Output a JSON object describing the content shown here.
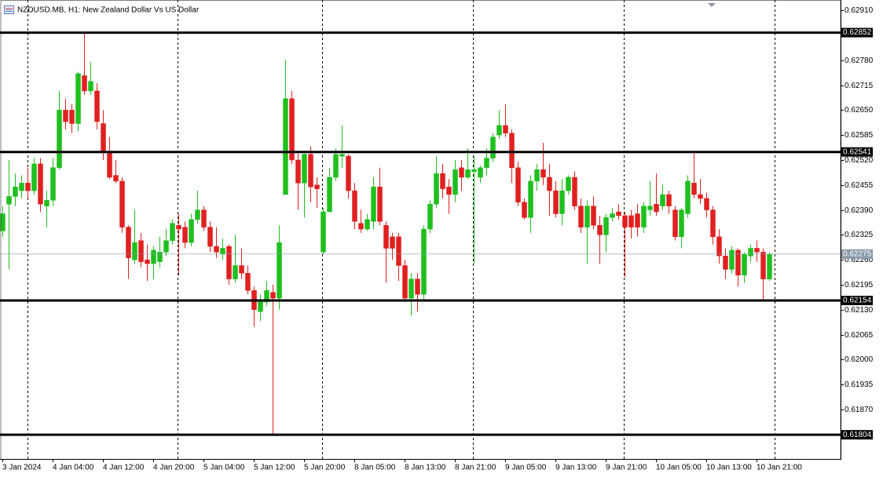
{
  "chart_data": {
    "type": "candlestick",
    "title": "NZDUSD.MB, H1:  New Zealand Dollar Vs US Dollar",
    "up_color": "#1fbf1f",
    "down_color": "#e02020",
    "level_color": "#000000",
    "current_color": "#8a9aa8",
    "categories": [
      "3 Jan 2024",
      null,
      null,
      null,
      null,
      null,
      null,
      null,
      "4 Jan 04:00",
      null,
      null,
      null,
      null,
      null,
      null,
      null,
      "4 Jan 12:00",
      null,
      null,
      null,
      null,
      null,
      null,
      null,
      "4 Jan 20:00",
      null,
      null,
      null,
      null,
      null,
      null,
      null,
      "5 Jan 04:00",
      null,
      null,
      null,
      null,
      null,
      null,
      null,
      "5 Jan 12:00",
      null,
      null,
      null,
      null,
      null,
      null,
      null,
      "5 Jan 20:00",
      null,
      null,
      null,
      null,
      null,
      null,
      null,
      "8 Jan 05:00",
      null,
      null,
      null,
      null,
      null,
      null,
      null,
      "8 Jan 13:00",
      null,
      null,
      null,
      null,
      null,
      null,
      null,
      "8 Jan 21:00",
      null,
      null,
      null,
      null,
      null,
      null,
      null,
      "9 Jan 05:00",
      null,
      null,
      null,
      null,
      null,
      null,
      null,
      "9 Jan 13:00",
      null,
      null,
      null,
      null,
      null,
      null,
      null,
      "9 Jan 21:00",
      null,
      null,
      null,
      null,
      null,
      null,
      null,
      "10 Jan 05:00",
      null,
      null,
      null,
      null,
      null,
      null,
      null,
      "10 Jan 13:00",
      null,
      null,
      null,
      null,
      null,
      null,
      null,
      "10 Jan 21:00",
      null,
      null
    ],
    "open": [
      0.62335,
      0.62405,
      0.62425,
      0.6244,
      0.6246,
      0.6244,
      0.6251,
      0.624,
      0.62415,
      0.625,
      0.6265,
      0.6265,
      0.62615,
      0.6274,
      0.627,
      0.627,
      0.62615,
      0.6254,
      0.6248,
      0.62465,
      0.62345,
      0.6226,
      0.6231,
      0.6226,
      0.6225,
      0.62255,
      0.6228,
      0.6231,
      0.6235,
      0.62345,
      0.62305,
      0.62365,
      0.6239,
      0.62345,
      0.62295,
      0.62275,
      0.62295,
      0.6221,
      0.62245,
      0.62225,
      0.6218,
      0.62125,
      0.6215,
      0.62175,
      0.6216,
      0.6243,
      0.6268,
      0.6252,
      0.6246,
      0.62535,
      0.62455,
      0.6228,
      0.62385,
      0.62475,
      0.6253,
      0.6253,
      0.6244,
      0.62355,
      0.6234,
      0.6236,
      0.6245,
      0.6235,
      0.6232,
      0.6232,
      0.62245,
      0.6216,
      0.6221,
      0.6217,
      0.6234,
      0.62405,
      0.62485,
      0.6245,
      0.6243,
      0.625,
      0.62475,
      0.6249,
      0.62475,
      0.625,
      0.62525,
      0.62585,
      0.6261,
      0.6259,
      0.625,
      0.6241,
      0.6237,
      0.62465,
      0.62495,
      0.62475,
      0.6244,
      0.6238,
      0.6244,
      0.62475,
      0.624,
      0.62345,
      0.624,
      0.6235,
      0.62325,
      0.6237,
      0.62385,
      0.62375,
      0.62375,
      0.6238,
      0.62345,
      0.6239,
      0.62405,
      0.624,
      0.6243,
      0.6239,
      0.6232,
      0.6238,
      0.6246,
      0.6243,
      0.6242,
      0.6239,
      0.6232,
      0.6227,
      0.62235,
      0.62285,
      0.6222,
      0.6227,
      0.6229,
      0.6228,
      0.6221
    ],
    "high": [
      0.624,
      0.6252,
      0.62485,
      0.6248,
      0.625,
      0.62525,
      0.62525,
      0.6244,
      0.62525,
      0.627,
      0.6268,
      0.62665,
      0.6275,
      0.6285,
      0.62775,
      0.6272,
      0.6265,
      0.6258,
      0.6252,
      0.62475,
      0.6235,
      0.6239,
      0.6233,
      0.623,
      0.62295,
      0.6232,
      0.6234,
      0.62365,
      0.6238,
      0.6236,
      0.6238,
      0.6244,
      0.624,
      0.6236,
      0.62345,
      0.62315,
      0.623,
      0.62325,
      0.6229,
      0.62245,
      0.6219,
      0.6217,
      0.62205,
      0.62195,
      0.6235,
      0.6278,
      0.627,
      0.62545,
      0.62545,
      0.62555,
      0.62475,
      0.62395,
      0.625,
      0.6255,
      0.6261,
      0.62535,
      0.6246,
      0.6239,
      0.6238,
      0.62475,
      0.625,
      0.6236,
      0.6233,
      0.6233,
      0.6226,
      0.62225,
      0.62225,
      0.6235,
      0.62415,
      0.6253,
      0.6251,
      0.6247,
      0.6252,
      0.6252,
      0.6255,
      0.6253,
      0.62505,
      0.6255,
      0.6259,
      0.6265,
      0.62665,
      0.626,
      0.62515,
      0.6242,
      0.6248,
      0.6251,
      0.62565,
      0.6251,
      0.62465,
      0.6247,
      0.6248,
      0.6249,
      0.6242,
      0.62415,
      0.62425,
      0.62375,
      0.6238,
      0.62395,
      0.62405,
      0.62385,
      0.6239,
      0.62405,
      0.6241,
      0.62465,
      0.62485,
      0.62455,
      0.6244,
      0.624,
      0.62395,
      0.6248,
      0.6254,
      0.6247,
      0.62435,
      0.624,
      0.6234,
      0.6229,
      0.62295,
      0.6229,
      0.6228,
      0.623,
      0.6231,
      0.6229,
      0.6228
    ],
    "low": [
      0.6232,
      0.62235,
      0.624,
      0.6242,
      0.6242,
      0.6243,
      0.62385,
      0.62345,
      0.624,
      0.62495,
      0.626,
      0.6259,
      0.62595,
      0.6269,
      0.6269,
      0.626,
      0.6252,
      0.6247,
      0.6246,
      0.6233,
      0.6221,
      0.6225,
      0.6224,
      0.62205,
      0.6221,
      0.6224,
      0.6227,
      0.623,
      0.6222,
      0.6229,
      0.62295,
      0.62355,
      0.62335,
      0.6228,
      0.62265,
      0.6226,
      0.62195,
      0.622,
      0.6221,
      0.6217,
      0.62085,
      0.621,
      0.6214,
      0.61805,
      0.6213,
      0.6243,
      0.6251,
      0.6239,
      0.6237,
      0.6241,
      0.62395,
      0.62275,
      0.62385,
      0.62465,
      0.625,
      0.6242,
      0.6234,
      0.6233,
      0.62335,
      0.6234,
      0.6235,
      0.622,
      0.6226,
      0.62205,
      0.6215,
      0.62115,
      0.62125,
      0.62155,
      0.6233,
      0.62395,
      0.6242,
      0.6238,
      0.6241,
      0.6244,
      0.6247,
      0.6225,
      0.6246,
      0.6248,
      0.62515,
      0.62575,
      0.6258,
      0.6246,
      0.624,
      0.62365,
      0.6233,
      0.6244,
      0.62455,
      0.62375,
      0.6237,
      0.6235,
      0.6243,
      0.6239,
      0.6233,
      0.6225,
      0.6234,
      0.6225,
      0.6228,
      0.6236,
      0.62365,
      0.62215,
      0.62315,
      0.6232,
      0.6233,
      0.62375,
      0.62375,
      0.6239,
      0.6238,
      0.6231,
      0.6229,
      0.6237,
      0.6242,
      0.62405,
      0.6237,
      0.623,
      0.6225,
      0.6221,
      0.62225,
      0.6219,
      0.622,
      0.62255,
      0.62255,
      0.62155,
      0.62205
    ],
    "close": [
      0.6238,
      0.62425,
      0.6245,
      0.6246,
      0.6244,
      0.6251,
      0.62405,
      0.62415,
      0.625,
      0.6265,
      0.6262,
      0.62615,
      0.62745,
      0.627,
      0.62725,
      0.6262,
      0.6254,
      0.62475,
      0.62465,
      0.62345,
      0.62265,
      0.62305,
      0.62255,
      0.6225,
      0.62285,
      0.6228,
      0.6231,
      0.62355,
      0.6234,
      0.62305,
      0.62365,
      0.6239,
      0.62345,
      0.62295,
      0.6228,
      0.6229,
      0.6221,
      0.62245,
      0.62225,
      0.6218,
      0.6213,
      0.6215,
      0.6218,
      0.6216,
      0.62305,
      0.6268,
      0.6252,
      0.6246,
      0.62535,
      0.6245,
      0.62445,
      0.62385,
      0.62475,
      0.62535,
      0.62535,
      0.6244,
      0.6236,
      0.6234,
      0.62365,
      0.6245,
      0.6236,
      0.6229,
      0.6229,
      0.62245,
      0.6216,
      0.6221,
      0.6217,
      0.6234,
      0.62405,
      0.62485,
      0.62445,
      0.6243,
      0.62495,
      0.62475,
      0.62495,
      0.62495,
      0.625,
      0.62525,
      0.6258,
      0.6261,
      0.6259,
      0.625,
      0.6241,
      0.6237,
      0.62465,
      0.62495,
      0.62475,
      0.6244,
      0.6238,
      0.6244,
      0.62475,
      0.624,
      0.62345,
      0.624,
      0.6235,
      0.62325,
      0.6237,
      0.6238,
      0.62375,
      0.62345,
      0.62345,
      0.62345,
      0.624,
      0.624,
      0.62385,
      0.6243,
      0.624,
      0.6232,
      0.6239,
      0.62465,
      0.6243,
      0.6242,
      0.6239,
      0.6232,
      0.6227,
      0.62235,
      0.62285,
      0.6222,
      0.62275,
      0.6229,
      0.6228,
      0.6221,
      0.62275
    ],
    "ylim": [
      0.61741,
      0.62937
    ],
    "yticks": [
      {
        "value": 0.6291,
        "label": "0.62910"
      },
      {
        "value": 0.6278,
        "label": "0.62780"
      },
      0.62715,
      {
        "value": 0.6265,
        "label": "0.62650"
      },
      0.62585,
      {
        "value": 0.6252,
        "label": "0.62520"
      },
      0.62455,
      {
        "value": 0.6239,
        "label": "0.62390"
      },
      0.62325,
      {
        "value": 0.6226,
        "label": "0.62260"
      },
      0.62195,
      {
        "value": 0.6213,
        "label": "0.62130"
      },
      0.62065,
      {
        "value": 0.62,
        "label": "0.62000"
      },
      0.61935,
      {
        "value": 0.6187,
        "label": "0.61870"
      }
    ],
    "levels": [
      0.62852,
      0.62541,
      0.62154,
      0.61804
    ],
    "current_price": 0.62275
  }
}
